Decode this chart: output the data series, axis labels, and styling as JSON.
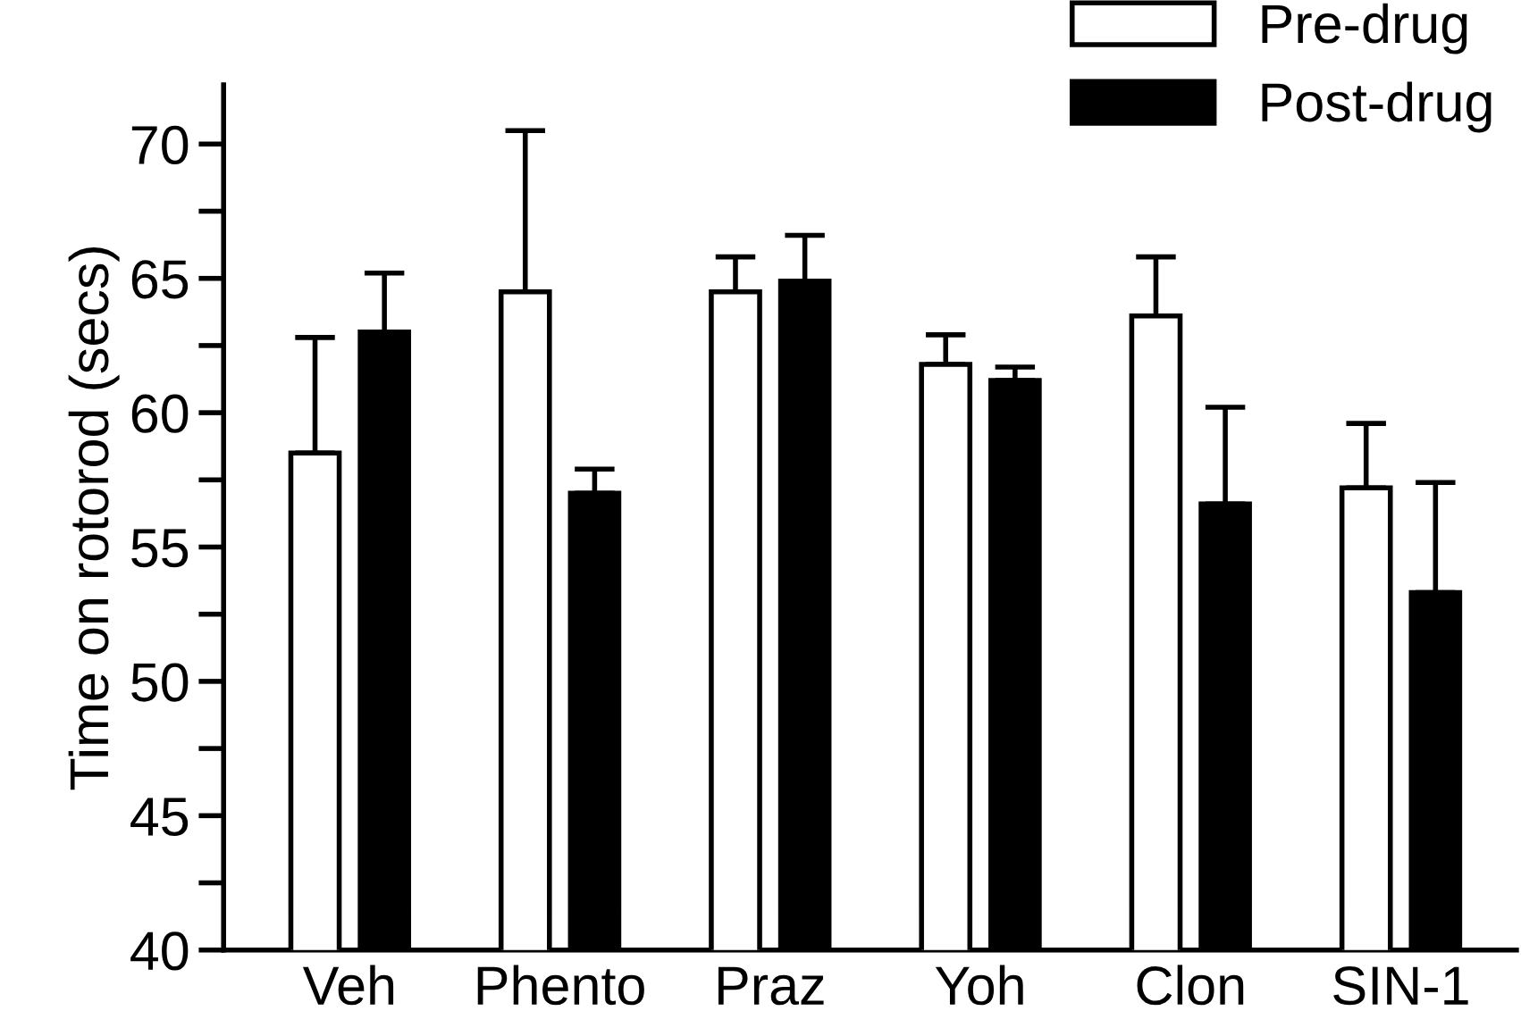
{
  "chart_data": {
    "type": "bar",
    "ylabel": "Time on rotorod (secs)",
    "categories": [
      "Veh",
      "Phento",
      "Praz",
      "Yoh",
      "Clon",
      "SIN-1"
    ],
    "series": [
      {
        "name": "Pre-drug",
        "color": "#ffffff",
        "values": [
          58.5,
          64.5,
          64.5,
          61.8,
          63.6,
          57.2
        ],
        "errors": [
          [
            58.5,
            62.8
          ],
          [
            64.5,
            70.5
          ],
          [
            64.5,
            65.8
          ],
          [
            61.8,
            62.9
          ],
          [
            63.6,
            65.8
          ],
          [
            57.2,
            59.6
          ]
        ]
      },
      {
        "name": "Post-drug",
        "color": "#000000",
        "values": [
          63.0,
          57.0,
          64.9,
          61.2,
          56.6,
          53.3
        ],
        "errors": [
          [
            63.0,
            65.2
          ],
          [
            57.0,
            57.9
          ],
          [
            64.9,
            66.6
          ],
          [
            61.2,
            61.7
          ],
          [
            56.6,
            60.2
          ],
          [
            53.3,
            57.4
          ]
        ]
      }
    ],
    "ylim": [
      40,
      72.2
    ],
    "yticks": [
      40,
      {
        "value": 42.5,
        "label": null
      },
      45,
      {
        "value": 47.5,
        "label": null
      },
      50,
      {
        "value": 52.5,
        "label": null
      },
      55,
      {
        "value": 57.5,
        "label": null
      },
      60,
      {
        "value": 62.5,
        "label": null
      },
      65,
      {
        "value": 67.5,
        "label": null
      },
      70
    ],
    "grid": false,
    "legend": "top right"
  }
}
